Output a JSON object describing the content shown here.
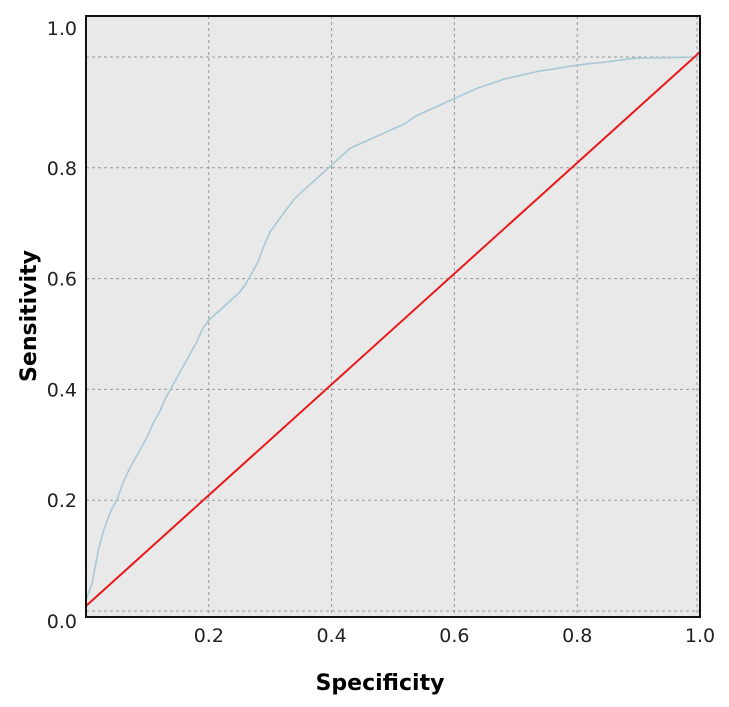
{
  "chart_data": {
    "type": "line",
    "title": "",
    "xlabel": "Specificity",
    "ylabel": "Sensitivity",
    "xlim": [
      0.0,
      1.0
    ],
    "ylim": [
      0.0,
      1.0
    ],
    "grid": true,
    "background_color": "#e9e9e9",
    "x_ticks": [
      0.2,
      0.4,
      0.6,
      0.8,
      1.0
    ],
    "x_tick_labels": [
      "0.2",
      "0.4",
      "0.6",
      "0.8",
      "1.0"
    ],
    "y_ticks": [
      0.0,
      0.2,
      0.4,
      0.6,
      0.8,
      1.0
    ],
    "y_tick_labels": [
      "0.0",
      "0.2",
      "0.4",
      "0.6",
      "0.8",
      "1.0"
    ],
    "series": [
      {
        "color": "#a8c8d8",
        "x": [
          0.0,
          0.01,
          0.015,
          0.02,
          0.025,
          0.03,
          0.035,
          0.04,
          0.045,
          0.05,
          0.055,
          0.06,
          0.07,
          0.08,
          0.09,
          0.1,
          0.11,
          0.12,
          0.13,
          0.14,
          0.15,
          0.16,
          0.17,
          0.18,
          0.19,
          0.2,
          0.21,
          0.22,
          0.23,
          0.24,
          0.25,
          0.26,
          0.27,
          0.28,
          0.29,
          0.3,
          0.31,
          0.32,
          0.33,
          0.34,
          0.35,
          0.36,
          0.37,
          0.38,
          0.39,
          0.4,
          0.41,
          0.42,
          0.43,
          0.44,
          0.45,
          0.46,
          0.47,
          0.48,
          0.49,
          0.5,
          0.51,
          0.52,
          0.53,
          0.54,
          0.55,
          0.56,
          0.57,
          0.58,
          0.59,
          0.6,
          0.62,
          0.64,
          0.66,
          0.68,
          0.7,
          0.72,
          0.74,
          0.76,
          0.78,
          0.8,
          0.82,
          0.84,
          0.86,
          0.88,
          0.9,
          0.95,
          1.0
        ],
        "y": [
          0.02,
          0.05,
          0.08,
          0.11,
          0.13,
          0.15,
          0.165,
          0.18,
          0.19,
          0.2,
          0.215,
          0.23,
          0.255,
          0.275,
          0.295,
          0.315,
          0.34,
          0.36,
          0.385,
          0.405,
          0.425,
          0.445,
          0.465,
          0.485,
          0.51,
          0.525,
          0.535,
          0.545,
          0.555,
          0.565,
          0.575,
          0.59,
          0.61,
          0.63,
          0.66,
          0.685,
          0.7,
          0.715,
          0.73,
          0.745,
          0.755,
          0.765,
          0.775,
          0.785,
          0.795,
          0.805,
          0.815,
          0.825,
          0.835,
          0.84,
          0.845,
          0.85,
          0.855,
          0.86,
          0.865,
          0.87,
          0.875,
          0.88,
          0.888,
          0.895,
          0.9,
          0.905,
          0.91,
          0.915,
          0.92,
          0.925,
          0.935,
          0.945,
          0.952,
          0.96,
          0.965,
          0.97,
          0.975,
          0.978,
          0.982,
          0.985,
          0.988,
          0.99,
          0.993,
          0.996,
          0.998,
          0.999,
          1.0
        ]
      },
      {
        "color": "#e8191b",
        "x": [
          0.0,
          1.0
        ],
        "y": [
          0.0,
          1.0
        ]
      }
    ]
  }
}
